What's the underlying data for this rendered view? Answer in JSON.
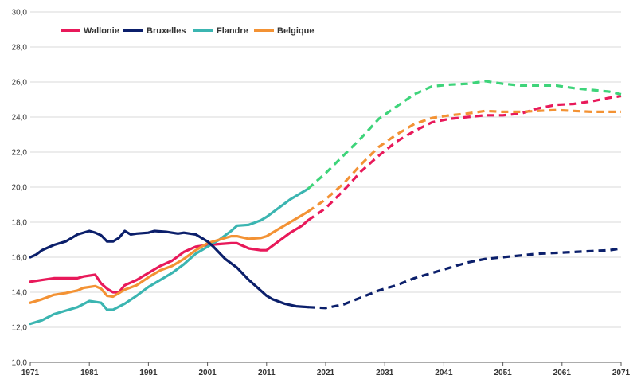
{
  "chart_data": {
    "type": "line",
    "title": "",
    "xlabel": "",
    "ylabel": "",
    "xlim": [
      1971,
      2071
    ],
    "ylim": [
      10,
      30
    ],
    "grid": "horizontal",
    "legend_position": "top-left",
    "historical_end": 2018,
    "x_ticks": [
      "1971",
      "1981",
      "1991",
      "2001",
      "2011",
      "2021",
      "2031",
      "2041",
      "2051",
      "2061",
      "2071"
    ],
    "y_ticks": [
      "10,0",
      "12,0",
      "14,0",
      "16,0",
      "18,0",
      "20,0",
      "22,0",
      "24,0",
      "26,0",
      "28,0",
      "30,0"
    ],
    "series": [
      {
        "name": "Wallonie",
        "color": "#e8195a",
        "projection_color": "#e8195a",
        "points": [
          [
            1971,
            14.6
          ],
          [
            1973,
            14.7
          ],
          [
            1975,
            14.8
          ],
          [
            1977,
            14.8
          ],
          [
            1979,
            14.8
          ],
          [
            1980,
            14.9
          ],
          [
            1982,
            15.0
          ],
          [
            1983,
            14.5
          ],
          [
            1984,
            14.2
          ],
          [
            1985,
            14.0
          ],
          [
            1986,
            14.0
          ],
          [
            1987,
            14.4
          ],
          [
            1989,
            14.7
          ],
          [
            1991,
            15.1
          ],
          [
            1993,
            15.5
          ],
          [
            1995,
            15.8
          ],
          [
            1997,
            16.3
          ],
          [
            1999,
            16.6
          ],
          [
            2001,
            16.7
          ],
          [
            2003,
            16.75
          ],
          [
            2005,
            16.8
          ],
          [
            2006,
            16.8
          ],
          [
            2008,
            16.5
          ],
          [
            2010,
            16.4
          ],
          [
            2011,
            16.4
          ],
          [
            2013,
            16.9
          ],
          [
            2015,
            17.4
          ],
          [
            2017,
            17.8
          ],
          [
            2018,
            18.1
          ],
          [
            2021,
            18.8
          ],
          [
            2024,
            19.8
          ],
          [
            2027,
            20.9
          ],
          [
            2030,
            21.8
          ],
          [
            2033,
            22.6
          ],
          [
            2036,
            23.2
          ],
          [
            2039,
            23.7
          ],
          [
            2042,
            23.9
          ],
          [
            2045,
            24.0
          ],
          [
            2048,
            24.1
          ],
          [
            2051,
            24.1
          ],
          [
            2054,
            24.2
          ],
          [
            2057,
            24.5
          ],
          [
            2060,
            24.7
          ],
          [
            2063,
            24.75
          ],
          [
            2066,
            24.9
          ],
          [
            2069,
            25.1
          ],
          [
            2071,
            25.2
          ]
        ]
      },
      {
        "name": "Bruxelles",
        "color": "#0b1f6b",
        "projection_color": "#0b1f6b",
        "points": [
          [
            1971,
            16.0
          ],
          [
            1972,
            16.15
          ],
          [
            1973,
            16.4
          ],
          [
            1975,
            16.7
          ],
          [
            1977,
            16.9
          ],
          [
            1979,
            17.3
          ],
          [
            1981,
            17.5
          ],
          [
            1982,
            17.4
          ],
          [
            1983,
            17.25
          ],
          [
            1984,
            16.9
          ],
          [
            1985,
            16.9
          ],
          [
            1986,
            17.1
          ],
          [
            1987,
            17.5
          ],
          [
            1988,
            17.3
          ],
          [
            1989,
            17.35
          ],
          [
            1991,
            17.4
          ],
          [
            1992,
            17.5
          ],
          [
            1994,
            17.45
          ],
          [
            1996,
            17.35
          ],
          [
            1997,
            17.4
          ],
          [
            1999,
            17.3
          ],
          [
            2001,
            16.9
          ],
          [
            2002,
            16.6
          ],
          [
            2004,
            15.9
          ],
          [
            2006,
            15.4
          ],
          [
            2008,
            14.7
          ],
          [
            2010,
            14.1
          ],
          [
            2011,
            13.8
          ],
          [
            2012,
            13.6
          ],
          [
            2014,
            13.35
          ],
          [
            2016,
            13.2
          ],
          [
            2018,
            13.15
          ],
          [
            2021,
            13.1
          ],
          [
            2024,
            13.3
          ],
          [
            2027,
            13.7
          ],
          [
            2030,
            14.1
          ],
          [
            2033,
            14.4
          ],
          [
            2036,
            14.8
          ],
          [
            2039,
            15.1
          ],
          [
            2042,
            15.4
          ],
          [
            2045,
            15.7
          ],
          [
            2048,
            15.9
          ],
          [
            2051,
            16.0
          ],
          [
            2054,
            16.1
          ],
          [
            2057,
            16.2
          ],
          [
            2060,
            16.25
          ],
          [
            2063,
            16.3
          ],
          [
            2066,
            16.35
          ],
          [
            2069,
            16.4
          ],
          [
            2071,
            16.5
          ]
        ]
      },
      {
        "name": "Flandre",
        "color": "#3bb5b1",
        "projection_color": "#3ed47a",
        "points": [
          [
            1971,
            12.2
          ],
          [
            1973,
            12.4
          ],
          [
            1975,
            12.75
          ],
          [
            1977,
            12.95
          ],
          [
            1979,
            13.15
          ],
          [
            1981,
            13.5
          ],
          [
            1983,
            13.4
          ],
          [
            1984,
            13.0
          ],
          [
            1985,
            13.0
          ],
          [
            1987,
            13.35
          ],
          [
            1989,
            13.8
          ],
          [
            1991,
            14.3
          ],
          [
            1993,
            14.7
          ],
          [
            1995,
            15.1
          ],
          [
            1997,
            15.6
          ],
          [
            1999,
            16.2
          ],
          [
            2001,
            16.6
          ],
          [
            2003,
            17.0
          ],
          [
            2005,
            17.5
          ],
          [
            2006,
            17.8
          ],
          [
            2008,
            17.85
          ],
          [
            2010,
            18.1
          ],
          [
            2011,
            18.3
          ],
          [
            2013,
            18.8
          ],
          [
            2015,
            19.3
          ],
          [
            2017,
            19.7
          ],
          [
            2018,
            19.9
          ],
          [
            2021,
            20.8
          ],
          [
            2024,
            21.8
          ],
          [
            2027,
            22.8
          ],
          [
            2030,
            23.9
          ],
          [
            2033,
            24.6
          ],
          [
            2036,
            25.3
          ],
          [
            2039,
            25.75
          ],
          [
            2042,
            25.85
          ],
          [
            2045,
            25.9
          ],
          [
            2048,
            26.05
          ],
          [
            2051,
            25.9
          ],
          [
            2054,
            25.8
          ],
          [
            2057,
            25.8
          ],
          [
            2060,
            25.8
          ],
          [
            2063,
            25.65
          ],
          [
            2066,
            25.55
          ],
          [
            2069,
            25.45
          ],
          [
            2071,
            25.3
          ]
        ]
      },
      {
        "name": "Belgique",
        "color": "#f39234",
        "projection_color": "#f39234",
        "points": [
          [
            1971,
            13.4
          ],
          [
            1973,
            13.6
          ],
          [
            1975,
            13.85
          ],
          [
            1977,
            13.95
          ],
          [
            1979,
            14.1
          ],
          [
            1980,
            14.25
          ],
          [
            1982,
            14.35
          ],
          [
            1983,
            14.2
          ],
          [
            1984,
            13.8
          ],
          [
            1985,
            13.75
          ],
          [
            1987,
            14.15
          ],
          [
            1989,
            14.4
          ],
          [
            1991,
            14.85
          ],
          [
            1993,
            15.25
          ],
          [
            1995,
            15.5
          ],
          [
            1997,
            15.9
          ],
          [
            1999,
            16.4
          ],
          [
            2001,
            16.8
          ],
          [
            2003,
            17.0
          ],
          [
            2005,
            17.2
          ],
          [
            2006,
            17.2
          ],
          [
            2008,
            17.05
          ],
          [
            2010,
            17.1
          ],
          [
            2011,
            17.2
          ],
          [
            2013,
            17.6
          ],
          [
            2015,
            18.0
          ],
          [
            2017,
            18.4
          ],
          [
            2018,
            18.6
          ],
          [
            2021,
            19.3
          ],
          [
            2024,
            20.2
          ],
          [
            2027,
            21.3
          ],
          [
            2030,
            22.3
          ],
          [
            2033,
            23.0
          ],
          [
            2036,
            23.6
          ],
          [
            2039,
            23.95
          ],
          [
            2042,
            24.1
          ],
          [
            2045,
            24.2
          ],
          [
            2048,
            24.35
          ],
          [
            2051,
            24.3
          ],
          [
            2054,
            24.3
          ],
          [
            2057,
            24.35
          ],
          [
            2060,
            24.4
          ],
          [
            2063,
            24.35
          ],
          [
            2066,
            24.3
          ],
          [
            2069,
            24.3
          ],
          [
            2071,
            24.3
          ]
        ]
      }
    ]
  }
}
